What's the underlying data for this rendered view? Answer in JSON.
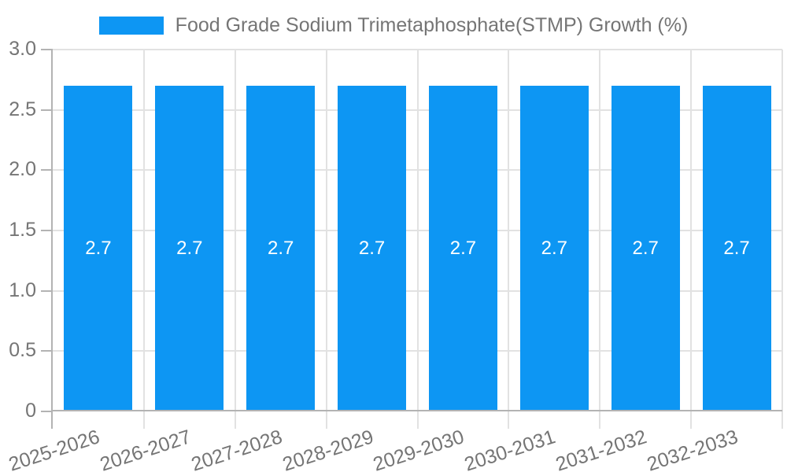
{
  "legend": {
    "label": "Food Grade Sodium Trimetaphosphate(STMP) Growth (%)",
    "swatch_color": "#0D96F3"
  },
  "chart_data": {
    "type": "bar",
    "title": "Food Grade Sodium Trimetaphosphate(STMP) Growth (%)",
    "categories": [
      "2025-2026",
      "2026-2027",
      "2027-2028",
      "2028-2029",
      "2029-2030",
      "2030-2031",
      "2031-2032",
      "2032-2033"
    ],
    "values": [
      2.7,
      2.7,
      2.7,
      2.7,
      2.7,
      2.7,
      2.7,
      2.7
    ],
    "bar_value_labels": [
      "2.7",
      "2.7",
      "2.7",
      "2.7",
      "2.7",
      "2.7",
      "2.7",
      "2.7"
    ],
    "xlabel": "",
    "ylabel": "",
    "ylim": [
      0,
      3.0
    ],
    "ytick_labels": [
      "3.0",
      "2.5",
      "2.0",
      "1.5",
      "1.0",
      "0.5",
      "0"
    ],
    "grid": true,
    "legend_position": "top-center",
    "bar_color": "#0D96F3",
    "axis_text_color": "#757575",
    "grid_color": "#e2e2e2",
    "axis_line_color": "#b3b3b3",
    "bar_label_text_color": "#ffffff"
  }
}
